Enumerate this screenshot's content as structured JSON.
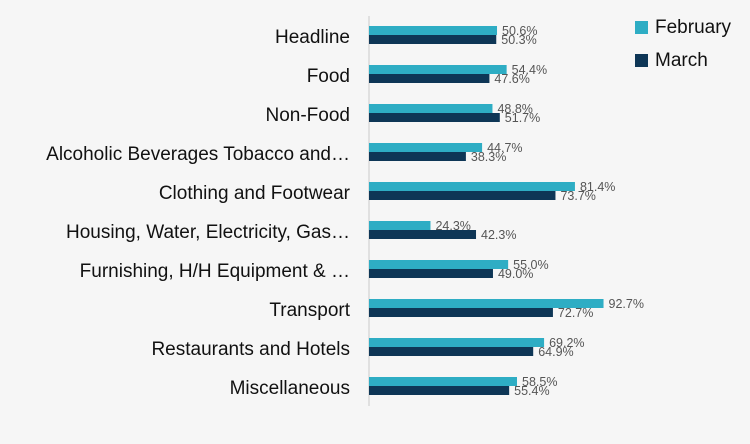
{
  "chart_data": {
    "type": "bar",
    "orientation": "horizontal",
    "categories": [
      "Headline",
      "Food",
      "Non-Food",
      "Alcoholic Beverages Tobacco and…",
      "Clothing and Footwear",
      "Housing, Water, Electricity, Gas…",
      "Furnishing, H/H Equipment & …",
      "Transport",
      "Restaurants and Hotels",
      "Miscellaneous"
    ],
    "series": [
      {
        "name": "February",
        "color": "#2eadc4",
        "values": [
          50.6,
          54.4,
          48.8,
          44.7,
          81.4,
          24.3,
          55.0,
          92.7,
          69.2,
          58.5
        ],
        "labels": [
          "50.6%",
          "54.4%",
          "48.8%",
          "44.7%",
          "81.4%",
          "24.3%",
          "55.0%",
          "92.7%",
          "69.2%",
          "58.5%"
        ]
      },
      {
        "name": "March",
        "color": "#0e3656",
        "values": [
          50.3,
          47.6,
          51.7,
          38.3,
          73.7,
          42.3,
          49.0,
          72.7,
          64.9,
          55.4
        ],
        "labels": [
          "50.3%",
          "47.6%",
          "51.7%",
          "38.3%",
          "73.7%",
          "42.3%",
          "49.0%",
          "72.7%",
          "64.9%",
          "55.4%"
        ]
      }
    ],
    "xlim": [
      0,
      100
    ],
    "grid": false,
    "legend_position": "top-right",
    "title": "",
    "xlabel": "",
    "ylabel": ""
  }
}
